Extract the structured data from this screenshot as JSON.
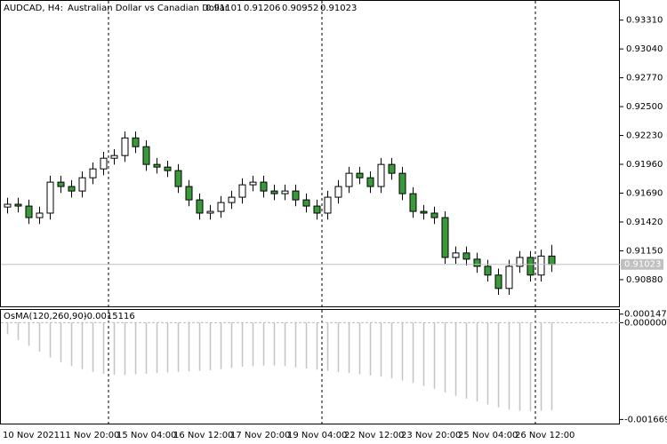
{
  "chart_data": {
    "type": "candlestick",
    "symbol": "AUDCAD, H4:",
    "description": "Australian Dollar vs Canadian Dollar",
    "ohlc": [
      [
        0.9156,
        0.91646,
        0.915,
        0.91586
      ],
      [
        0.91586,
        0.91646,
        0.91509,
        0.91569
      ],
      [
        0.91569,
        0.91629,
        0.91401,
        0.91461
      ],
      [
        0.91461,
        0.91563,
        0.91401,
        0.91503
      ],
      [
        0.91503,
        0.91853,
        0.91443,
        0.91793
      ],
      [
        0.91793,
        0.91853,
        0.91692,
        0.91752
      ],
      [
        0.91752,
        0.91812,
        0.9165,
        0.9171
      ],
      [
        0.9171,
        0.91894,
        0.9165,
        0.91834
      ],
      [
        0.91834,
        0.91977,
        0.91774,
        0.91917
      ],
      [
        0.91917,
        0.92077,
        0.91857,
        0.92017
      ],
      [
        0.92017,
        0.92102,
        0.91957,
        0.92042
      ],
      [
        0.92042,
        0.92267,
        0.91982,
        0.92207
      ],
      [
        0.92207,
        0.92267,
        0.92065,
        0.92125
      ],
      [
        0.92125,
        0.92185,
        0.91899,
        0.91959
      ],
      [
        0.91959,
        0.92019,
        0.91874,
        0.91934
      ],
      [
        0.91934,
        0.91994,
        0.91841,
        0.91901
      ],
      [
        0.91901,
        0.91961,
        0.91692,
        0.91752
      ],
      [
        0.91752,
        0.91812,
        0.91567,
        0.91627
      ],
      [
        0.91627,
        0.91687,
        0.91443,
        0.91503
      ],
      [
        0.91503,
        0.91579,
        0.91443,
        0.91519
      ],
      [
        0.91519,
        0.91662,
        0.91459,
        0.91602
      ],
      [
        0.91602,
        0.91712,
        0.91542,
        0.91652
      ],
      [
        0.91652,
        0.91828,
        0.91592,
        0.91768
      ],
      [
        0.91768,
        0.91853,
        0.91708,
        0.91793
      ],
      [
        0.91793,
        0.91853,
        0.9165,
        0.9171
      ],
      [
        0.9171,
        0.9177,
        0.91625,
        0.91685
      ],
      [
        0.91685,
        0.9177,
        0.91625,
        0.9171
      ],
      [
        0.9171,
        0.9177,
        0.91567,
        0.91627
      ],
      [
        0.91627,
        0.91687,
        0.91509,
        0.91569
      ],
      [
        0.91569,
        0.91629,
        0.91443,
        0.91503
      ],
      [
        0.91503,
        0.91712,
        0.91443,
        0.91652
      ],
      [
        0.91652,
        0.91812,
        0.91592,
        0.91752
      ],
      [
        0.91752,
        0.91936,
        0.91692,
        0.91876
      ],
      [
        0.91876,
        0.91936,
        0.91774,
        0.91834
      ],
      [
        0.91834,
        0.91894,
        0.91692,
        0.91752
      ],
      [
        0.91752,
        0.92019,
        0.91692,
        0.91959
      ],
      [
        0.91959,
        0.92019,
        0.91816,
        0.91876
      ],
      [
        0.91876,
        0.91936,
        0.91625,
        0.91685
      ],
      [
        0.91685,
        0.91745,
        0.91459,
        0.91519
      ],
      [
        0.91519,
        0.91579,
        0.91443,
        0.91503
      ],
      [
        0.91503,
        0.91563,
        0.91401,
        0.91461
      ],
      [
        0.91461,
        0.91521,
        0.91028,
        0.91088
      ],
      [
        0.91088,
        0.9119,
        0.91028,
        0.9113
      ],
      [
        0.9113,
        0.9119,
        0.91012,
        0.91072
      ],
      [
        0.91072,
        0.91132,
        0.90945,
        0.91005
      ],
      [
        0.91005,
        0.91065,
        0.90863,
        0.90923
      ],
      [
        0.90923,
        0.90983,
        0.90738,
        0.90798
      ],
      [
        0.90798,
        0.91065,
        0.90738,
        0.91005
      ],
      [
        0.91005,
        0.91148,
        0.90945,
        0.91088
      ],
      [
        0.91088,
        0.91148,
        0.90863,
        0.90923
      ],
      [
        0.90923,
        0.91161,
        0.90863,
        0.91101
      ],
      [
        0.91101,
        0.91206,
        0.90952,
        0.91023
      ]
    ],
    "bull_color": "#ffffff",
    "bear_color": "#3a9a3a",
    "ylim": [
      0.9063,
      0.9349
    ],
    "yticks": [
      {
        "value": 0.9331,
        "label": "0.93310"
      },
      {
        "value": 0.9304,
        "label": "0.93040"
      },
      {
        "value": 0.9277,
        "label": "0.92770"
      },
      {
        "value": 0.925,
        "label": "0.92500"
      },
      {
        "value": 0.9223,
        "label": "0.92230"
      },
      {
        "value": 0.9196,
        "label": "0.91960"
      },
      {
        "value": 0.9169,
        "label": "0.91690"
      },
      {
        "value": 0.9142,
        "label": "0.91420"
      },
      {
        "value": 0.9115,
        "label": "0.91150"
      },
      {
        "value": 0.9088,
        "label": "0.90880"
      }
    ],
    "x_labels": [
      "10 Nov 2021",
      "11 Nov 20:00",
      "15 Nov 04:00",
      "16 Nov 12:00",
      "17 Nov 20:00",
      "19 Nov 04:00",
      "22 Nov 12:00",
      "23 Nov 20:00",
      "25 Nov 04:00",
      "26 Nov 12:00"
    ],
    "last_price_line": true,
    "indicator": {
      "type": "bar",
      "name": "OsMA(120,260,90)",
      "color": "#c4c4c4",
      "values": [
        -0.0002,
        -0.0003,
        -0.0004,
        -0.0005,
        -0.0006,
        -0.00068,
        -0.00075,
        -0.0008,
        -0.00085,
        -0.00088,
        -0.0009,
        -0.0009,
        -0.00089,
        -0.00088,
        -0.00087,
        -0.00086,
        -0.00085,
        -0.00084,
        -0.00083,
        -0.00082,
        -0.0008,
        -0.00078,
        -0.00076,
        -0.00075,
        -0.00074,
        -0.00074,
        -0.00075,
        -0.00077,
        -0.00079,
        -0.00081,
        -0.00083,
        -0.00085,
        -0.00087,
        -0.00089,
        -0.00091,
        -0.00093,
        -0.00096,
        -0.001,
        -0.00104,
        -0.00109,
        -0.00114,
        -0.0012,
        -0.00126,
        -0.00131,
        -0.00136,
        -0.00141,
        -0.00146,
        -0.0015,
        -0.00152,
        -0.00153,
        -0.00152,
        -0.0015116
      ],
      "ylim": [
        -0.00174,
        0.00022
      ],
      "yticks": [
        0.0001474,
        {
          "value": 0,
          "label": "0.0000000"
        },
        -0.0016693
      ]
    }
  }
}
